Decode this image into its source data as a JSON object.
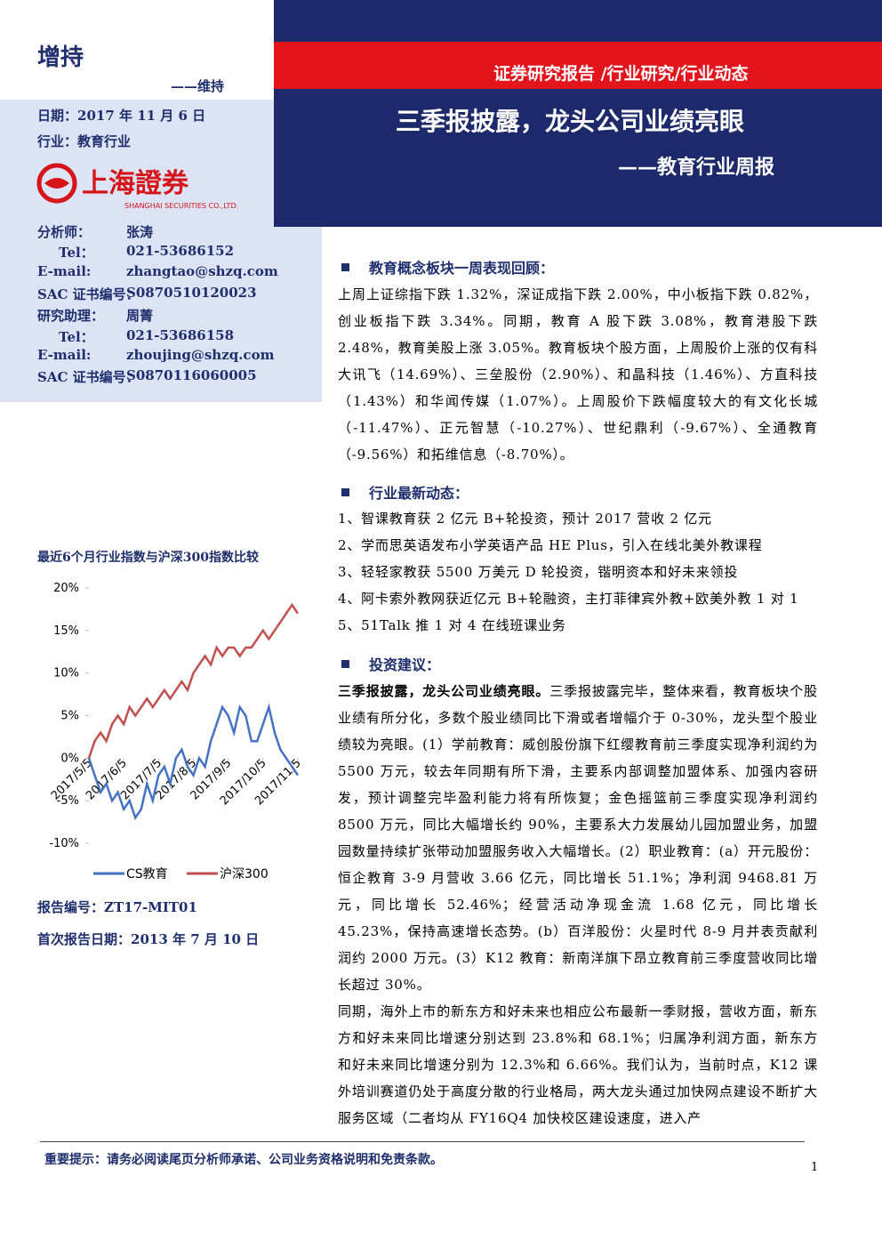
{
  "rating": {
    "current": "增持",
    "previous": "——维持"
  },
  "header": {
    "banner": "证券研究报告 /行业研究/行业动态",
    "title": "三季报披露，龙头公司业绩亮眼",
    "subtitle": "——教育行业周报"
  },
  "meta": [
    [
      "日期：",
      "2017 年 11 月 6 日"
    ],
    [
      "行业：",
      "教育行业"
    ]
  ],
  "logo": {
    "name": "上海證券",
    "english": "SHANGHAI SECURITIES CO.,LTD."
  },
  "contacts": [
    [
      "分析师：",
      "张涛"
    ],
    [
      "Tel：",
      "021-53686152"
    ],
    [
      "E-mail:",
      "zhangtao@shzq.com"
    ],
    [
      "SAC 证书编号：",
      "S0870510120023"
    ],
    [
      "研究助理：",
      "周菁"
    ],
    [
      "Tel：",
      "021-53686158"
    ],
    [
      "E-mail:",
      "zhoujing@shzq.com"
    ],
    [
      "SAC 证书编号：",
      "S0870116060005"
    ]
  ],
  "chart_data": {
    "type": "line",
    "title": "最近6个月行业指数与沪深300指数比较",
    "categories": [
      "2017/5/5",
      null,
      null,
      null,
      null,
      null,
      "2017/6/5",
      null,
      null,
      null,
      null,
      null,
      "2017/7/5",
      null,
      null,
      null,
      null,
      null,
      "2017/8/5",
      null,
      null,
      null,
      null,
      null,
      "2017/9/5",
      null,
      null,
      null,
      null,
      null,
      "2017/10/5",
      null,
      null,
      null,
      null,
      null,
      "2017/11/5"
    ],
    "series": [
      {
        "name": "CS教育",
        "color": "#4472c4",
        "values": [
          0,
          -2,
          -4,
          -3,
          -5,
          -4,
          -6,
          -5,
          -7,
          -6,
          -3,
          -5,
          -2,
          -1,
          -3,
          0,
          1,
          -1,
          -2,
          0,
          -1,
          2,
          4,
          6,
          5,
          3,
          6,
          5,
          2,
          2,
          4,
          6,
          3,
          1,
          0,
          -1,
          -2
        ]
      },
      {
        "name": "沪深300",
        "color": "#c0504d",
        "values": [
          0,
          2,
          3,
          2,
          4,
          5,
          4,
          6,
          5,
          6,
          7,
          6,
          7,
          8,
          7,
          8,
          9,
          8,
          10,
          11,
          12,
          11,
          13,
          12,
          13,
          13,
          12,
          13,
          13,
          14,
          15,
          14,
          15,
          16,
          17,
          18,
          17
        ]
      }
    ],
    "ylim": [
      -10,
      20
    ],
    "yticks": [
      {
        "value": -10,
        "label": "-10%"
      },
      {
        "value": -5,
        "label": "-5%"
      },
      {
        "value": 0,
        "label": "0%"
      },
      {
        "value": 5,
        "label": "5%"
      },
      {
        "value": 10,
        "label": "10%"
      },
      {
        "value": 15,
        "label": "15%"
      },
      {
        "value": 20,
        "label": "20%"
      }
    ],
    "legend": "bottom"
  },
  "report_info": [
    [
      "报告编号：",
      "ZT17-MIT01"
    ],
    [
      "首次报告日期：",
      "2013 年 7 月 10 日"
    ]
  ],
  "sections": [
    {
      "heading": "教育概念板块一周表现回顾：",
      "paragraphs": [
        "上周上证综指下跌 1.32%，深证成指下跌 2.00%，中小板指下跌 0.82%，创业板指下跌 3.34%。同期，教育 A 股下跌 3.08%，教育港股下跌 2.48%，教育美股上涨 3.05%。教育板块个股方面，上周股价上涨的仅有科大讯飞（14.69%）、三垒股份（2.90%）、和晶科技（1.46%）、方直科技（1.43%）和华闻传媒（1.07%）。上周股价下跌幅度较大的有文化长城（-11.47%）、正元智慧（-10.27%）、世纪鼎利（-9.67%）、全通教育（-9.56%）和拓维信息（-8.70%）。"
      ]
    },
    {
      "heading": "行业最新动态：",
      "paragraphs": [
        "1、智课教育获 2 亿元 B+轮投资，预计 2017 营收 2 亿元",
        "2、学而思英语发布小学英语产品 HE Plus，引入在线北美外教课程",
        "3、轻轻家教获 5500 万美元 D 轮投资，锴明资本和好未来领投",
        "4、阿卡索外教网获近亿元 B+轮融资，主打菲律宾外教+欧美外教 1 对 1",
        "5、51Talk 推 1 对 4 在线班课业务"
      ]
    },
    {
      "heading": "投资建议：",
      "lead": "三季报披露，龙头公司业绩亮眼。",
      "paragraphs": [
        "三季报披露完毕，整体来看，教育板块个股业绩有所分化，多数个股业绩同比下滑或者增幅介于 0-30%，龙头型个股业绩较为亮眼。(1）学前教育：威创股份旗下红缨教育前三季度实现净利润约为 5500 万元，较去年同期有所下滑，主要系内部调整加盟体系、加强内容研发，预计调整完毕盈利能力将有所恢复；金色摇篮前三季度实现净利润约 8500 万元，同比大幅增长约 90%，主要系大力发展幼儿园加盟业务，加盟园数量持续扩张带动加盟服务收入大幅增长。(2）职业教育：(a）开元股份：恒企教育 3-9 月营收 3.66 亿元，同比增长 51.1%；净利润 9468.81 万元，同比增长 52.46%；经营活动净现金流 1.68 亿元，同比增长 45.23%，保持高速增长态势。(b）百洋股份：火星时代 8-9 月并表贡献利润约 2000 万元。(3）K12 教育：新南洋旗下昂立教育前三季度营收同比增长超过 30%。",
        "同期，海外上市的新东方和好未来也相应公布最新一季财报，营收方面，新东方和好未来同比增速分别达到 23.8%和 68.1%；归属净利润方面，新东方和好未来同比增速分别为 12.3%和 6.66%。我们认为，当前时点，K12 课外培训赛道仍处于高度分散的行业格局，两大龙头通过加快网点建设不断扩大服务区域（二者均从 FY16Q4 加快校区建设速度，进入产"
      ]
    }
  ],
  "footer": {
    "notice": "重要提示：请务必阅读尾页分析师承诺、公司业务资格说明和免责条款。",
    "page": 1
  }
}
